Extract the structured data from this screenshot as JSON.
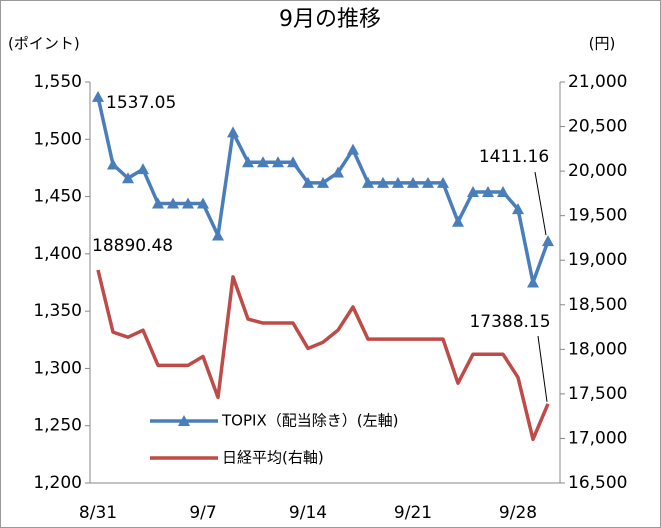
{
  "chart_data": {
    "type": "line",
    "title": "9月の推移",
    "y_label": "(ポイント)",
    "y2_label": "(円)",
    "categories": [
      "8/31",
      null,
      null,
      null,
      null,
      null,
      null,
      "9/7",
      null,
      null,
      null,
      null,
      null,
      null,
      "9/14",
      null,
      null,
      null,
      null,
      null,
      null,
      "9/21",
      null,
      null,
      null,
      null,
      null,
      null,
      "9/28",
      null,
      null
    ],
    "series": [
      {
        "name": "TOPIX（配当除き）(左軸)",
        "color": "#4a7ebb",
        "axis": "y",
        "marker": "triangle",
        "values": [
          1537.05,
          1478,
          1466,
          1474,
          1444,
          1444,
          1444,
          1444,
          1416,
          1506,
          1480,
          1480,
          1480,
          1480,
          1462,
          1462,
          1471,
          1491,
          1462,
          1462,
          1462,
          1462,
          1462,
          1462,
          1428,
          1454,
          1454,
          1454,
          1439,
          1375,
          1411.16
        ]
      },
      {
        "name": "日経平均(右軸)",
        "color": "#be4b48",
        "axis": "y2",
        "values": [
          18890.48,
          18193,
          18136,
          18215,
          17820,
          17820,
          17820,
          17920,
          17460,
          18813,
          18340,
          18295,
          18295,
          18295,
          18010,
          18080,
          18215,
          18475,
          18115,
          18115,
          18115,
          18115,
          18115,
          18115,
          17620,
          17945,
          17945,
          17945,
          17685,
          16990,
          17388.15
        ]
      }
    ],
    "ylim": [
      1200,
      1550
    ],
    "yticks": [
      {
        "value": 1200,
        "label": "1,200"
      },
      {
        "value": 1250,
        "label": "1,250"
      },
      {
        "value": 1300,
        "label": "1,300"
      },
      {
        "value": 1350,
        "label": "1,350"
      },
      {
        "value": 1400,
        "label": "1,400"
      },
      {
        "value": 1450,
        "label": "1,450"
      },
      {
        "value": 1500,
        "label": "1,500"
      },
      {
        "value": 1550,
        "label": "1,550"
      }
    ],
    "y2lim": [
      16500,
      21000
    ],
    "y2ticks": [
      {
        "value": 16500,
        "label": "16,500"
      },
      {
        "value": 17000,
        "label": "17,000"
      },
      {
        "value": 17500,
        "label": "17,500"
      },
      {
        "value": 18000,
        "label": "18,000"
      },
      {
        "value": 18500,
        "label": "18,500"
      },
      {
        "value": 19000,
        "label": "19,000"
      },
      {
        "value": 19500,
        "label": "19,500"
      },
      {
        "value": 20000,
        "label": "20,000"
      },
      {
        "value": 20500,
        "label": "20,500"
      },
      {
        "value": 21000,
        "label": "21,000"
      }
    ],
    "grid": false,
    "legend": "lower center"
  }
}
